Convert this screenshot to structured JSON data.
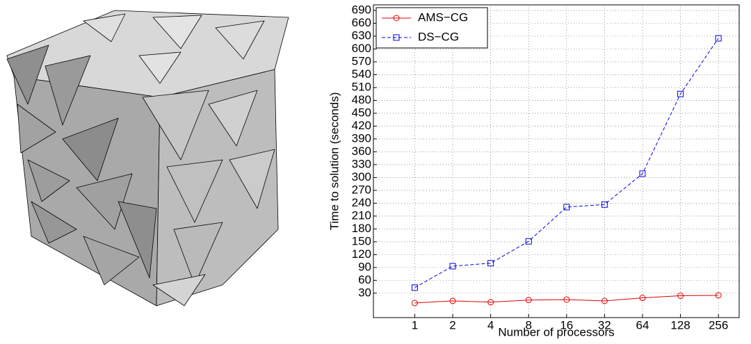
{
  "chart_data": {
    "type": "line",
    "x": [
      1,
      2,
      4,
      8,
      16,
      32,
      64,
      128,
      256
    ],
    "xscale": "log",
    "xlim": [
      0.47,
      374
    ],
    "xticks": [
      1,
      2,
      4,
      8,
      16,
      32,
      64,
      128,
      256
    ],
    "xlabel": "Number of processors",
    "ylabel": "Time to solution (seconds)",
    "ylim": [
      -27,
      703
    ],
    "yticks": [
      30,
      60,
      90,
      120,
      150,
      180,
      210,
      240,
      270,
      300,
      330,
      360,
      390,
      420,
      450,
      480,
      510,
      540,
      570,
      600,
      630,
      660,
      690
    ],
    "grid": true,
    "legend": "upper left",
    "series": [
      {
        "name": "AMS−CG",
        "color": "#e00000",
        "marker": "circle",
        "dash": "solid",
        "values": [
          7,
          12,
          9,
          14,
          15,
          12,
          19,
          24,
          25
        ]
      },
      {
        "name": "DS−CG",
        "color": "#0000e0",
        "marker": "square",
        "dash": "dashed",
        "values": [
          43,
          93,
          100,
          151,
          231,
          237,
          309,
          495,
          625
        ]
      }
    ]
  }
}
